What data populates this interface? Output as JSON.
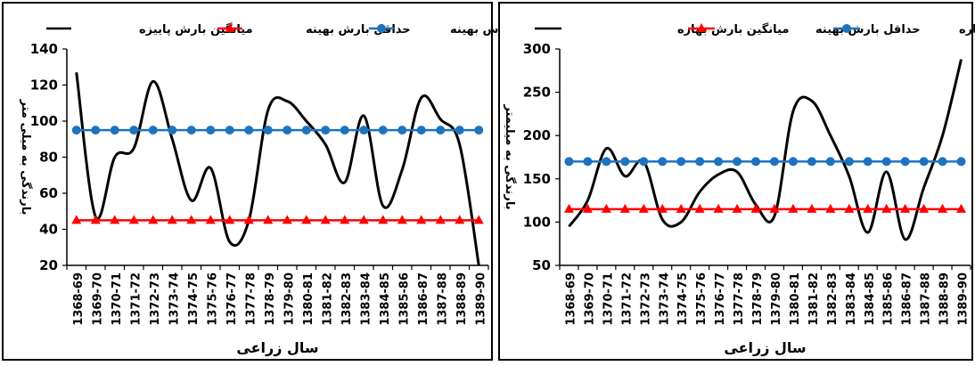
{
  "chart_data": [
    {
      "type": "line",
      "xlabel": "سال زراعی",
      "ylabel": "بارندگی به میلی متر",
      "ylim": [
        20,
        140
      ],
      "yticks": [
        20,
        40,
        60,
        80,
        100,
        120,
        140
      ],
      "grid": false,
      "legend_position": "top",
      "categories": [
        "1368-69",
        "1369-70",
        "1370-71",
        "1371-72",
        "1372-73",
        "1373-74",
        "1374-75",
        "1375-76",
        "1376-77",
        "1377-78",
        "1378-79",
        "1379-80",
        "1380-81",
        "1381-82",
        "1382-83",
        "1383-84",
        "1384-85",
        "1385-86",
        "1386-87",
        "1387-88",
        "1388-89",
        "1389-90"
      ],
      "series": [
        {
          "name": "میانگین بارش پاییزه",
          "color": "#000000",
          "marker": "none",
          "smooth": true,
          "values": [
            127,
            47,
            80,
            85,
            122,
            90,
            56,
            74,
            33,
            45,
            106,
            111,
            100,
            87,
            66,
            103,
            53,
            73,
            113,
            101,
            87,
            20
          ]
        },
        {
          "name": "حداقل بارش بهینه",
          "color": "#ff0000",
          "marker": "triangle",
          "values": [
            45,
            45,
            45,
            45,
            45,
            45,
            45,
            45,
            45,
            45,
            45,
            45,
            45,
            45,
            45,
            45,
            45,
            45,
            45,
            45,
            45,
            45
          ]
        },
        {
          "name": "بارش بهینه",
          "color": "#1e73be",
          "marker": "circle",
          "values": [
            95,
            95,
            95,
            95,
            95,
            95,
            95,
            95,
            95,
            95,
            95,
            95,
            95,
            95,
            95,
            95,
            95,
            95,
            95,
            95,
            95,
            95
          ]
        }
      ]
    },
    {
      "type": "line",
      "xlabel": "سال زراعی",
      "ylabel": "بارندگی به میلیمتر",
      "ylim": [
        50,
        300
      ],
      "yticks": [
        50,
        100,
        150,
        200,
        250,
        300
      ],
      "grid": false,
      "legend_position": "top",
      "categories": [
        "1368-69",
        "1369-70",
        "1370-71",
        "1371-72",
        "1372-73",
        "1373-74",
        "1374-75",
        "1375-76",
        "1376-77",
        "1377-78",
        "1378-79",
        "1379-80",
        "1380-81",
        "1381-82",
        "1382-83",
        "1383-84",
        "1384-85",
        "1385-86",
        "1386-87",
        "1387-88",
        "1388-89",
        "1389-90"
      ],
      "series": [
        {
          "name": "میانگین بارش بهاره",
          "color": "#000000",
          "marker": "none",
          "smooth": true,
          "values": [
            95,
            125,
            185,
            153,
            170,
            103,
            100,
            135,
            155,
            158,
            120,
            107,
            228,
            240,
            200,
            153,
            88,
            158,
            80,
            140,
            200,
            288
          ]
        },
        {
          "name": "حداقل بارش بهینه",
          "color": "#ff0000",
          "marker": "triangle",
          "values": [
            115,
            115,
            115,
            115,
            115,
            115,
            115,
            115,
            115,
            115,
            115,
            115,
            115,
            115,
            115,
            115,
            115,
            115,
            115,
            115,
            115,
            115
          ]
        },
        {
          "name": "بارش بهینه بهاره",
          "color": "#1e73be",
          "marker": "circle",
          "values": [
            170,
            170,
            170,
            170,
            170,
            170,
            170,
            170,
            170,
            170,
            170,
            170,
            170,
            170,
            170,
            170,
            170,
            170,
            170,
            170,
            170,
            170
          ]
        }
      ]
    }
  ]
}
